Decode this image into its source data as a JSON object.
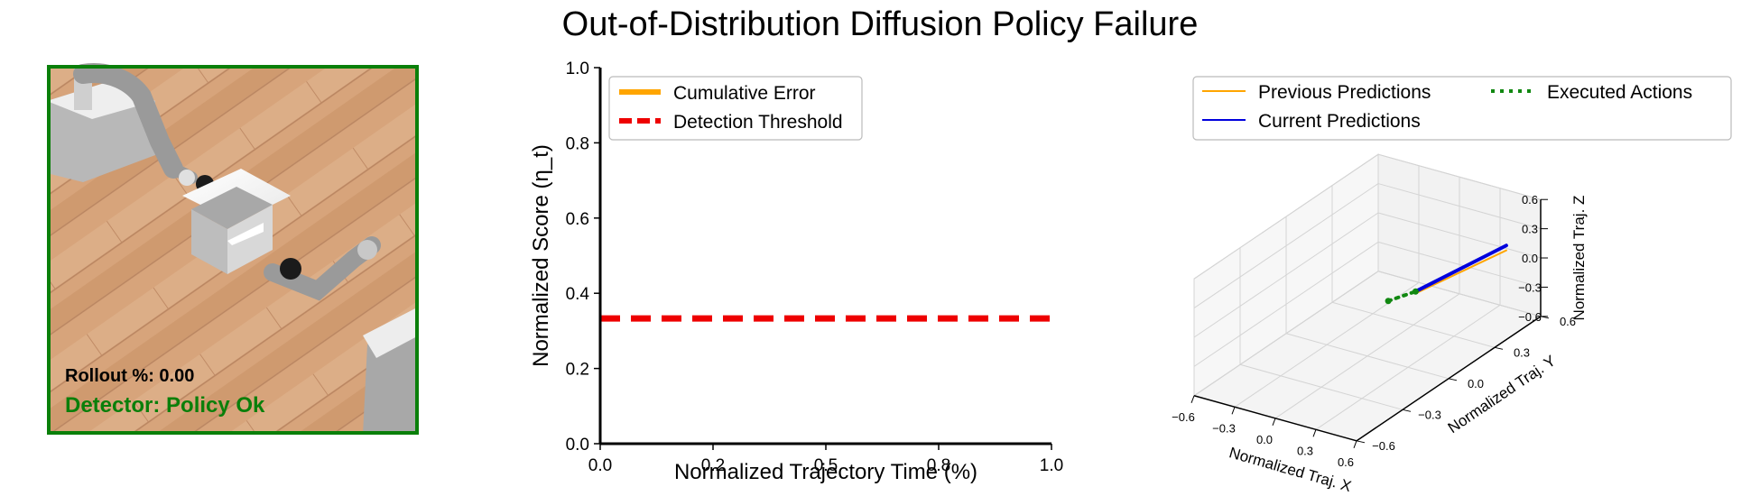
{
  "figure": {
    "title": "Out-of-Distribution Diffusion Policy Failure"
  },
  "left_panel": {
    "rollout_label": "Rollout %: 0.00",
    "detector_label": "Detector: Policy Ok",
    "frame_color": "#0a7f0a"
  },
  "chart_data": [
    {
      "type": "line",
      "xlabel": "Normalized Trajectory Time (%)",
      "ylabel": "Normalized Score (η_t)",
      "xlim": [
        0.0,
        1.0
      ],
      "ylim": [
        0.0,
        1.0
      ],
      "xticks": [
        "0.0",
        "0.2",
        "0.5",
        "0.8",
        "1.0"
      ],
      "xtick_values": [
        0.0,
        0.25,
        0.5,
        0.75,
        1.0
      ],
      "yticks": [
        "0.0",
        "0.2",
        "0.4",
        "0.6",
        "0.8",
        "1.0"
      ],
      "ytick_values": [
        0.0,
        0.2,
        0.4,
        0.6,
        0.8,
        1.0
      ],
      "grid": false,
      "legend_position": "top-left",
      "series": [
        {
          "name": "Cumulative Error",
          "color": "#ffa500",
          "style": "solid",
          "x": [],
          "y": []
        },
        {
          "name": "Detection Threshold",
          "color": "#ee0000",
          "style": "dashed",
          "x": [
            0.0,
            1.0
          ],
          "y": [
            0.333,
            0.333
          ]
        }
      ]
    },
    {
      "type": "line3d",
      "xlabel": "Normalized Traj. X",
      "ylabel": "Normalized Traj. Y",
      "zlabel": "Normalized Traj. Z",
      "xlim": [
        -0.6,
        0.6
      ],
      "ylim": [
        -0.6,
        0.6
      ],
      "zlim": [
        -0.6,
        0.6
      ],
      "xticks": [
        "−0.6",
        "−0.3",
        "0.0",
        "0.3",
        "0.6"
      ],
      "yticks": [
        "−0.6",
        "−0.3",
        "0.0",
        "0.3",
        "0.6"
      ],
      "zticks": [
        "−0.6",
        "−0.3",
        "0.0",
        "0.3",
        "0.6"
      ],
      "tick_values": [
        -0.6,
        -0.3,
        0.0,
        0.3,
        0.6
      ],
      "grid": true,
      "legend_position": "top",
      "series": [
        {
          "name": "Previous Predictions",
          "color": "#ffa500",
          "style": "solid",
          "x": [
            0.22,
            0.55
          ],
          "y": [
            0.12,
            0.42
          ],
          "z": [
            0.0,
            0.25
          ]
        },
        {
          "name": "Current Predictions",
          "color": "#0000dd",
          "style": "solid",
          "x": [
            0.22,
            0.55
          ],
          "y": [
            0.12,
            0.42
          ],
          "z": [
            0.02,
            0.3
          ]
        },
        {
          "name": "Executed Actions",
          "color": "#118811",
          "style": "dotted",
          "x": [
            0.12,
            0.22
          ],
          "y": [
            0.03,
            0.12
          ],
          "z": [
            -0.02,
            0.02
          ]
        }
      ]
    }
  ]
}
